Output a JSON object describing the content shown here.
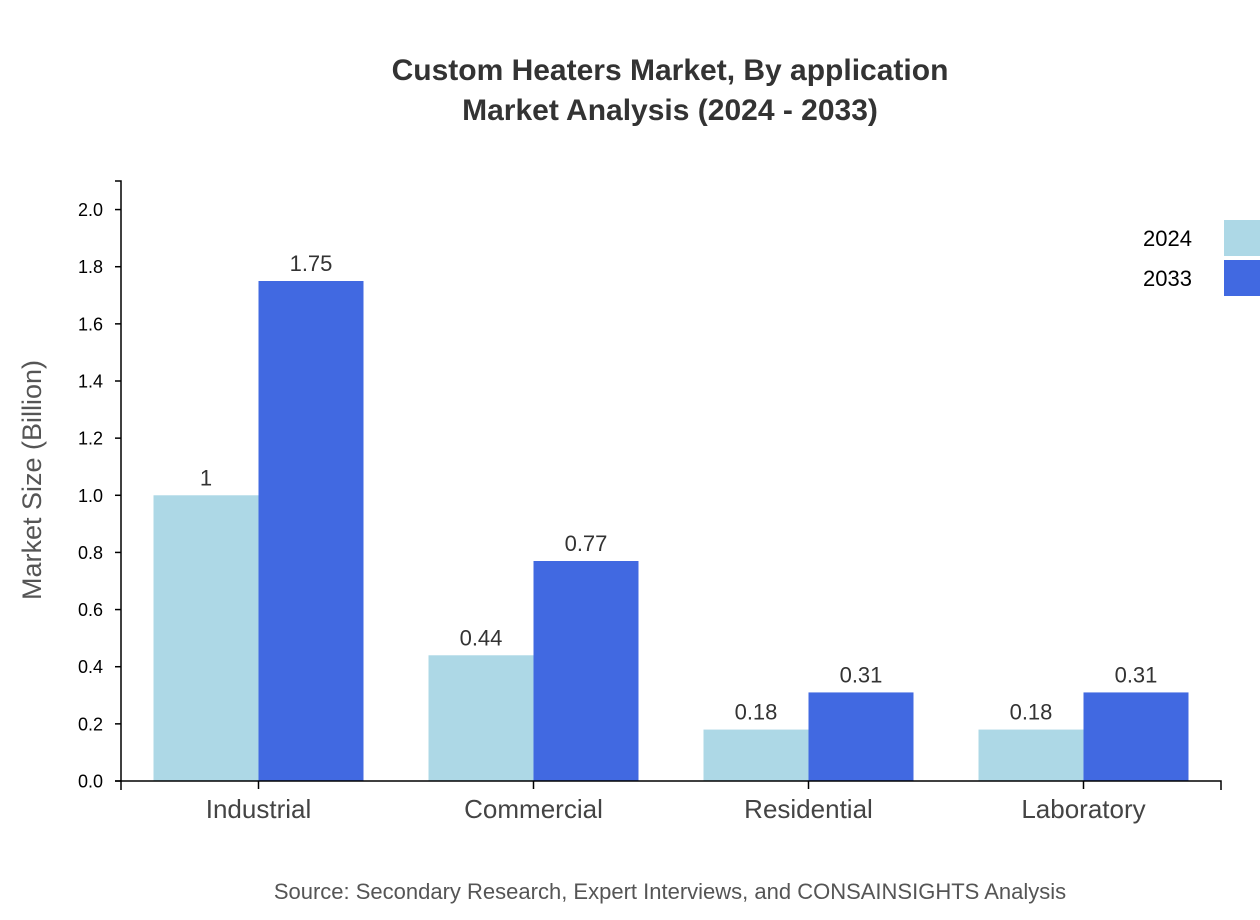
{
  "chart_data": {
    "type": "bar",
    "title_lines": [
      "Custom Heaters Market, By application",
      "Market Analysis (2024 - 2033)"
    ],
    "categories": [
      "Industrial",
      "Commercial",
      "Residential",
      "Laboratory"
    ],
    "series": [
      {
        "name": "2024",
        "color": "#add8e6",
        "values": [
          1,
          0.44,
          0.18,
          0.18
        ],
        "labels": [
          "1",
          "0.44",
          "0.18",
          "0.18"
        ]
      },
      {
        "name": "2033",
        "color": "#4169e1",
        "values": [
          1.75,
          0.77,
          0.31,
          0.31
        ],
        "labels": [
          "1.75",
          "0.77",
          "0.31",
          "0.31"
        ]
      }
    ],
    "ylabel": "Market Size (Billion)",
    "xlabel": "",
    "ylim": [
      0,
      2.1
    ],
    "yticks": [
      "0.0",
      "0.2",
      "0.4",
      "0.6",
      "0.8",
      "1.0",
      "1.2",
      "1.4",
      "1.6",
      "1.8",
      "2.0"
    ],
    "grid": false,
    "legend_position": "top-right",
    "source": "Source: Secondary Research, Expert Interviews, and CONSAINSIGHTS Analysis"
  }
}
